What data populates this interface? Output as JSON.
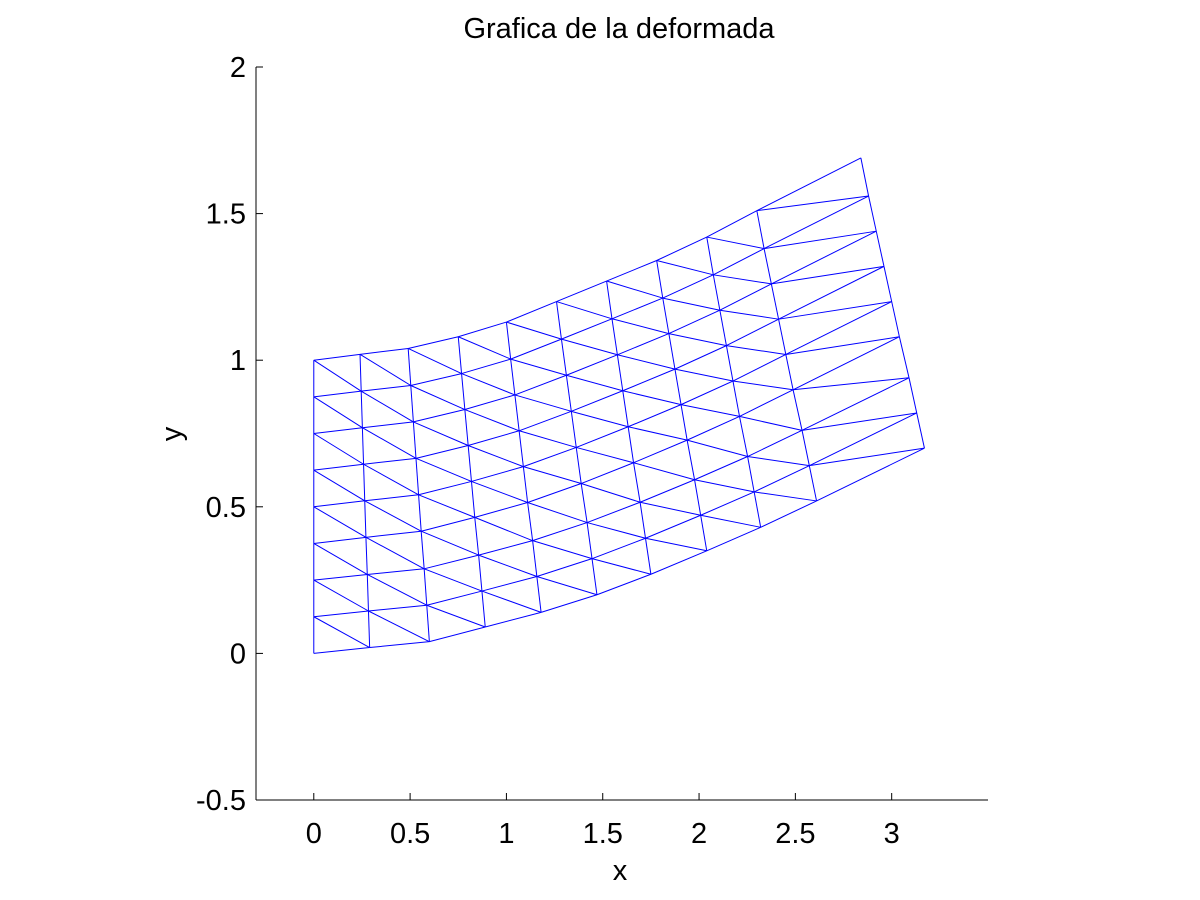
{
  "chart_data": {
    "type": "line",
    "title": "Grafica de la deformada",
    "xlabel": "x",
    "ylabel": "y",
    "xlim": [
      -0.3,
      3.5
    ],
    "ylim": [
      -0.5,
      2
    ],
    "xticks": [
      0,
      0.5,
      1,
      1.5,
      2,
      2.5,
      3
    ],
    "xtick_labels": [
      "0",
      "0.5",
      "1",
      "1.5",
      "2",
      "2.5",
      "3"
    ],
    "yticks": [
      -0.5,
      0,
      0.5,
      1,
      1.5,
      2
    ],
    "ytick_labels": [
      "-0.5",
      "0",
      "0.5",
      "1",
      "1.5",
      "2"
    ],
    "grid": false,
    "line_color": "#0000ff",
    "mesh": {
      "element": "triangle",
      "columns": 11,
      "rows": 9,
      "bottom_edge": [
        [
          0,
          0
        ],
        [
          0.29,
          0.02
        ],
        [
          0.6,
          0.04
        ],
        [
          0.89,
          0.09
        ],
        [
          1.18,
          0.14
        ],
        [
          1.47,
          0.2
        ],
        [
          1.75,
          0.27
        ],
        [
          2.04,
          0.35
        ],
        [
          2.32,
          0.43
        ],
        [
          2.61,
          0.52
        ],
        [
          3.17,
          0.7
        ]
      ],
      "top_edge": [
        [
          0,
          1
        ],
        [
          0.24,
          1.02
        ],
        [
          0.49,
          1.04
        ],
        [
          0.75,
          1.08
        ],
        [
          1.0,
          1.13
        ],
        [
          1.26,
          1.2
        ],
        [
          1.52,
          1.27
        ],
        [
          1.78,
          1.34
        ],
        [
          2.04,
          1.42
        ],
        [
          2.3,
          1.51
        ],
        [
          2.84,
          1.69
        ]
      ],
      "left_edge": [
        [
          0,
          0
        ],
        [
          0,
          0.125
        ],
        [
          0,
          0.25
        ],
        [
          0,
          0.375
        ],
        [
          0,
          0.5
        ],
        [
          0,
          0.625
        ],
        [
          0,
          0.75
        ],
        [
          0,
          0.875
        ],
        [
          0,
          1
        ]
      ],
      "right_edge": [
        [
          3.17,
          0.7
        ],
        [
          3.13,
          0.82
        ],
        [
          3.09,
          0.94
        ],
        [
          3.04,
          1.08
        ],
        [
          3.0,
          1.2
        ],
        [
          2.96,
          1.32
        ],
        [
          2.92,
          1.44
        ],
        [
          2.88,
          1.56
        ],
        [
          2.84,
          1.69
        ]
      ]
    }
  }
}
